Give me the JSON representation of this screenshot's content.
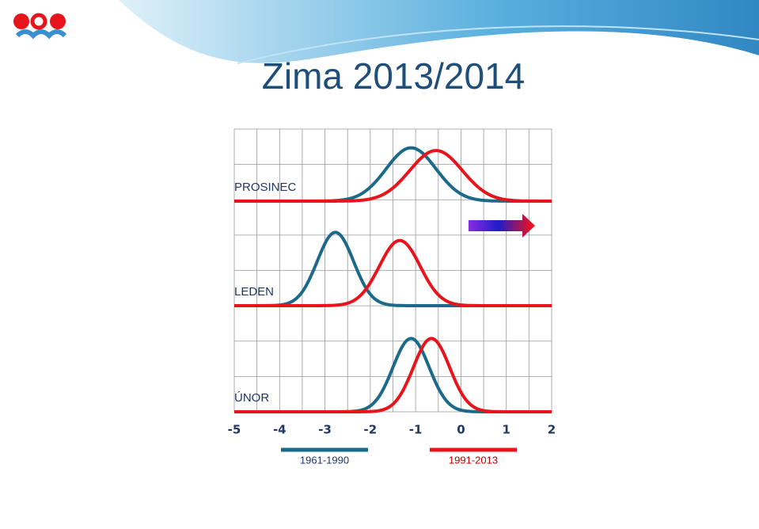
{
  "chart_data": {
    "type": "density",
    "title": "Zima 2013/2014",
    "xlim": [
      -5,
      2
    ],
    "xticks": [
      -5,
      -4,
      -3,
      -2,
      -1,
      0,
      1,
      2
    ],
    "ylim": [
      0,
      1.4
    ],
    "grid": true,
    "series": [
      {
        "name": "1961-1990",
        "color": "#1b6a8a"
      },
      {
        "name": "1991-2013",
        "color": "#e8141b"
      }
    ],
    "panels": [
      {
        "label": "PROSINEC",
        "means": [
          -1.1,
          -0.55
        ],
        "sds": [
          0.55,
          0.58
        ]
      },
      {
        "label": "LEDEN",
        "means": [
          -2.77,
          -1.35
        ],
        "sds": [
          0.4,
          0.45
        ]
      },
      {
        "label": "ÚNOR",
        "means": [
          -1.1,
          -0.65
        ],
        "sds": [
          0.4,
          0.4
        ]
      }
    ]
  }
}
